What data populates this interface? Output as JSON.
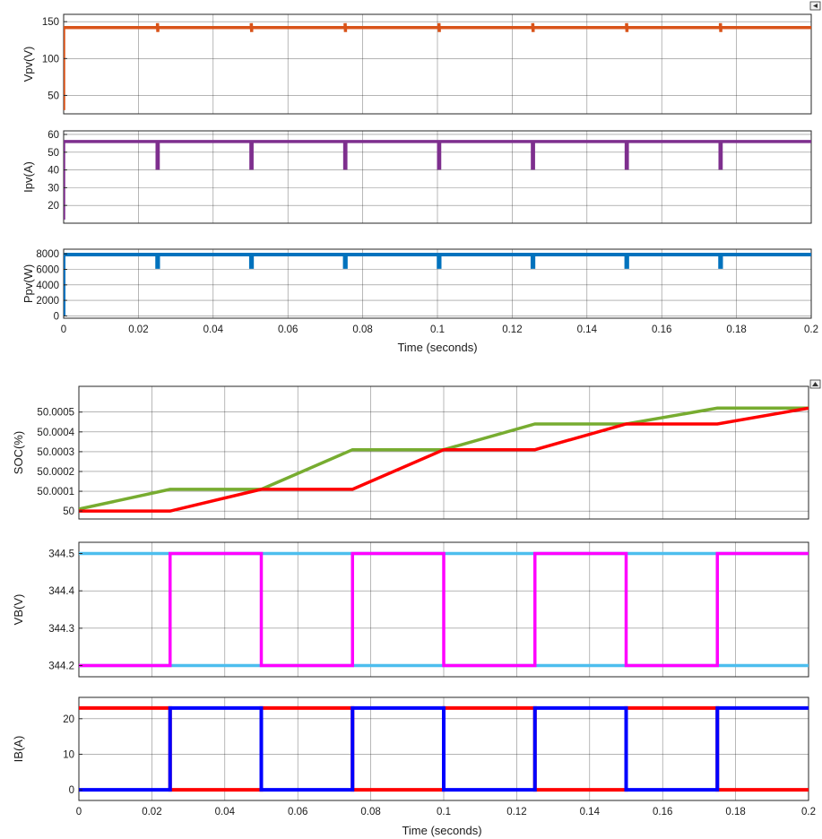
{
  "colors": {
    "orange": "#D95319",
    "purple": "#7E2F8E",
    "blue_pv": "#0072BD",
    "green": "#77AC30",
    "red": "#FF0000",
    "lightblue": "#4DBEEE",
    "magenta": "#FF00FF",
    "blue": "#0000FF"
  },
  "figures": {
    "top": {
      "control_icon": "collapse-icon",
      "xlabel": "Time (seconds)"
    },
    "bottom": {
      "control_icon": "expand-icon",
      "xlabel": "Time (seconds)"
    }
  },
  "chart_data": [
    {
      "type": "line",
      "ylabel": "Vpv(V)",
      "xlim": [
        0,
        0.2
      ],
      "ylim": [
        25,
        160
      ],
      "yticks": [
        50,
        100,
        150
      ],
      "ytick_labels": [
        "50",
        "100",
        "150"
      ],
      "xticks": [
        0,
        0.02,
        0.04,
        0.06,
        0.08,
        0.1,
        0.12,
        0.14,
        0.16,
        0.18,
        0.2
      ],
      "xtick_labels": [],
      "grid": true,
      "series": [
        {
          "color": "orange",
          "x": [
            0,
            0,
            0.0251,
            0.0251,
            0.0252,
            0.0252,
            0.0502,
            0.0502,
            0.0503,
            0.0503,
            0.0753,
            0.0753,
            0.0754,
            0.0754,
            0.1004,
            0.1004,
            0.1005,
            0.1005,
            0.1255,
            0.1255,
            0.1256,
            0.1256,
            0.1506,
            0.1506,
            0.1507,
            0.1507,
            0.1757,
            0.1757,
            0.1758,
            0.1758,
            0.2
          ],
          "y": [
            30,
            142,
            142,
            148,
            136,
            142,
            142,
            148,
            136,
            142,
            142,
            148,
            136,
            142,
            142,
            148,
            136,
            142,
            142,
            148,
            136,
            142,
            142,
            148,
            136,
            142,
            142,
            148,
            136,
            142,
            142
          ]
        }
      ]
    },
    {
      "type": "line",
      "ylabel": "Ipv(A)",
      "xlim": [
        0,
        0.2
      ],
      "ylim": [
        10,
        62
      ],
      "yticks": [
        20,
        30,
        40,
        50,
        60
      ],
      "ytick_labels": [
        "20",
        "30",
        "40",
        "50",
        "60"
      ],
      "xticks": [
        0,
        0.02,
        0.04,
        0.06,
        0.08,
        0.1,
        0.12,
        0.14,
        0.16,
        0.18,
        0.2
      ],
      "xtick_labels": [],
      "grid": true,
      "series": [
        {
          "color": "purple",
          "x": [
            0,
            0,
            0.025,
            0.025,
            0.0253,
            0.0253,
            0.0501,
            0.0501,
            0.0504,
            0.0504,
            0.0752,
            0.0752,
            0.0755,
            0.0755,
            0.1003,
            0.1003,
            0.1006,
            0.1006,
            0.1254,
            0.1254,
            0.1257,
            0.1257,
            0.1505,
            0.1505,
            0.1508,
            0.1508,
            0.1756,
            0.1756,
            0.1759,
            0.1759,
            0.2
          ],
          "y": [
            12,
            56,
            56,
            41,
            41,
            56,
            56,
            41,
            41,
            56,
            56,
            41,
            41,
            56,
            56,
            41,
            41,
            56,
            56,
            41,
            41,
            56,
            56,
            41,
            41,
            56,
            56,
            41,
            41,
            56,
            56
          ]
        }
      ]
    },
    {
      "type": "line",
      "ylabel": "Ppv(W)",
      "xlim": [
        0,
        0.2
      ],
      "ylim": [
        -300,
        8600
      ],
      "yticks": [
        0,
        2000,
        4000,
        6000,
        8000
      ],
      "ytick_labels": [
        "0",
        "2000",
        "4000",
        "6000",
        "8000"
      ],
      "xticks": [
        0,
        0.02,
        0.04,
        0.06,
        0.08,
        0.1,
        0.12,
        0.14,
        0.16,
        0.18,
        0.2
      ],
      "xtick_labels": [
        "0",
        "0.02",
        "0.04",
        "0.06",
        "0.08",
        "0.1",
        "0.12",
        "0.14",
        "0.16",
        "0.18",
        "0.2"
      ],
      "grid": true,
      "series": [
        {
          "color": "blue_pv",
          "x": [
            0,
            0,
            0.025,
            0.025,
            0.0253,
            0.0253,
            0.0501,
            0.0501,
            0.0504,
            0.0504,
            0.0752,
            0.0752,
            0.0755,
            0.0755,
            0.1003,
            0.1003,
            0.1006,
            0.1006,
            0.1254,
            0.1254,
            0.1257,
            0.1257,
            0.1505,
            0.1505,
            0.1508,
            0.1508,
            0.1756,
            0.1756,
            0.1759,
            0.1759,
            0.2
          ],
          "y": [
            0,
            7900,
            7900,
            6300,
            6300,
            7900,
            7900,
            6300,
            6300,
            7900,
            7900,
            6300,
            6300,
            7900,
            7900,
            6300,
            6300,
            7900,
            7900,
            6300,
            6300,
            7900,
            7900,
            6300,
            6300,
            7900,
            7900,
            6300,
            6300,
            7900,
            7900
          ]
        }
      ]
    },
    {
      "type": "line",
      "ylabel": "SOC(%)",
      "xlim": [
        0,
        0.2
      ],
      "ylim": [
        49.99996,
        50.00063
      ],
      "yticks": [
        50,
        50.0001,
        50.0002,
        50.0003,
        50.0004,
        50.0005
      ],
      "ytick_labels": [
        "50",
        "50.0001",
        "50.0002",
        "50.0003",
        "50.0004",
        "50.0005"
      ],
      "xticks": [
        0,
        0.02,
        0.04,
        0.06,
        0.08,
        0.1,
        0.12,
        0.14,
        0.16,
        0.18,
        0.2
      ],
      "xtick_labels": [],
      "grid": true,
      "series": [
        {
          "color": "green",
          "x": [
            0,
            0.025,
            0.05,
            0.075,
            0.1,
            0.125,
            0.15,
            0.175,
            0.2
          ],
          "y": [
            50.00001,
            50.00011,
            50.00011,
            50.00031,
            50.00031,
            50.00044,
            50.00044,
            50.00052,
            50.00052
          ]
        },
        {
          "color": "red",
          "x": [
            0,
            0.025,
            0.05,
            0.075,
            0.1,
            0.125,
            0.15,
            0.175,
            0.2
          ],
          "y": [
            50.0,
            50.0,
            50.00011,
            50.00011,
            50.00031,
            50.00031,
            50.00044,
            50.00044,
            50.00052
          ]
        }
      ]
    },
    {
      "type": "line",
      "ylabel": "VB(V)",
      "xlim": [
        0,
        0.2
      ],
      "ylim": [
        344.17,
        344.53
      ],
      "yticks": [
        344.2,
        344.3,
        344.4,
        344.5
      ],
      "ytick_labels": [
        "344.2",
        "344.3",
        "344.4",
        "344.5"
      ],
      "xticks": [
        0,
        0.02,
        0.04,
        0.06,
        0.08,
        0.1,
        0.12,
        0.14,
        0.16,
        0.18,
        0.2
      ],
      "xtick_labels": [],
      "grid": true,
      "series": [
        {
          "color": "lightblue",
          "x": [
            0,
            0.2
          ],
          "y": [
            344.5,
            344.5
          ]
        },
        {
          "color": "lightblue",
          "x": [
            0,
            0.2
          ],
          "y": [
            344.2,
            344.2
          ]
        },
        {
          "color": "magenta",
          "x": [
            0,
            0.025,
            0.025,
            0.05,
            0.05,
            0.075,
            0.075,
            0.1,
            0.1,
            0.125,
            0.125,
            0.15,
            0.15,
            0.175,
            0.175,
            0.2
          ],
          "y": [
            344.2,
            344.2,
            344.5,
            344.5,
            344.2,
            344.2,
            344.5,
            344.5,
            344.2,
            344.2,
            344.5,
            344.5,
            344.2,
            344.2,
            344.5,
            344.5
          ]
        }
      ]
    },
    {
      "type": "line",
      "ylabel": "IB(A)",
      "xlim": [
        0,
        0.2
      ],
      "ylim": [
        -3,
        26
      ],
      "yticks": [
        0,
        10,
        20
      ],
      "ytick_labels": [
        "0",
        "10",
        "20"
      ],
      "xticks": [
        0,
        0.02,
        0.04,
        0.06,
        0.08,
        0.1,
        0.12,
        0.14,
        0.16,
        0.18,
        0.2
      ],
      "xtick_labels": [
        "0",
        "0.02",
        "0.04",
        "0.06",
        "0.08",
        "0.1",
        "0.12",
        "0.14",
        "0.16",
        "0.18",
        "0.2"
      ],
      "grid": true,
      "series": [
        {
          "color": "red",
          "x": [
            0,
            0.025,
            0.025,
            0.05,
            0.05,
            0.075,
            0.075,
            0.1,
            0.1,
            0.125,
            0.125,
            0.15,
            0.15,
            0.175,
            0.175,
            0.2
          ],
          "y": [
            23,
            23,
            0,
            0,
            23,
            23,
            0,
            0,
            23,
            23,
            0,
            0,
            23,
            23,
            0,
            0
          ]
        },
        {
          "color": "blue",
          "x": [
            0,
            0.025,
            0.025,
            0.05,
            0.05,
            0.075,
            0.075,
            0.1,
            0.1,
            0.125,
            0.125,
            0.15,
            0.15,
            0.175,
            0.175,
            0.2
          ],
          "y": [
            0,
            0,
            23,
            23,
            0,
            0,
            23,
            23,
            0,
            0,
            23,
            23,
            0,
            0,
            23,
            23
          ]
        }
      ]
    }
  ]
}
